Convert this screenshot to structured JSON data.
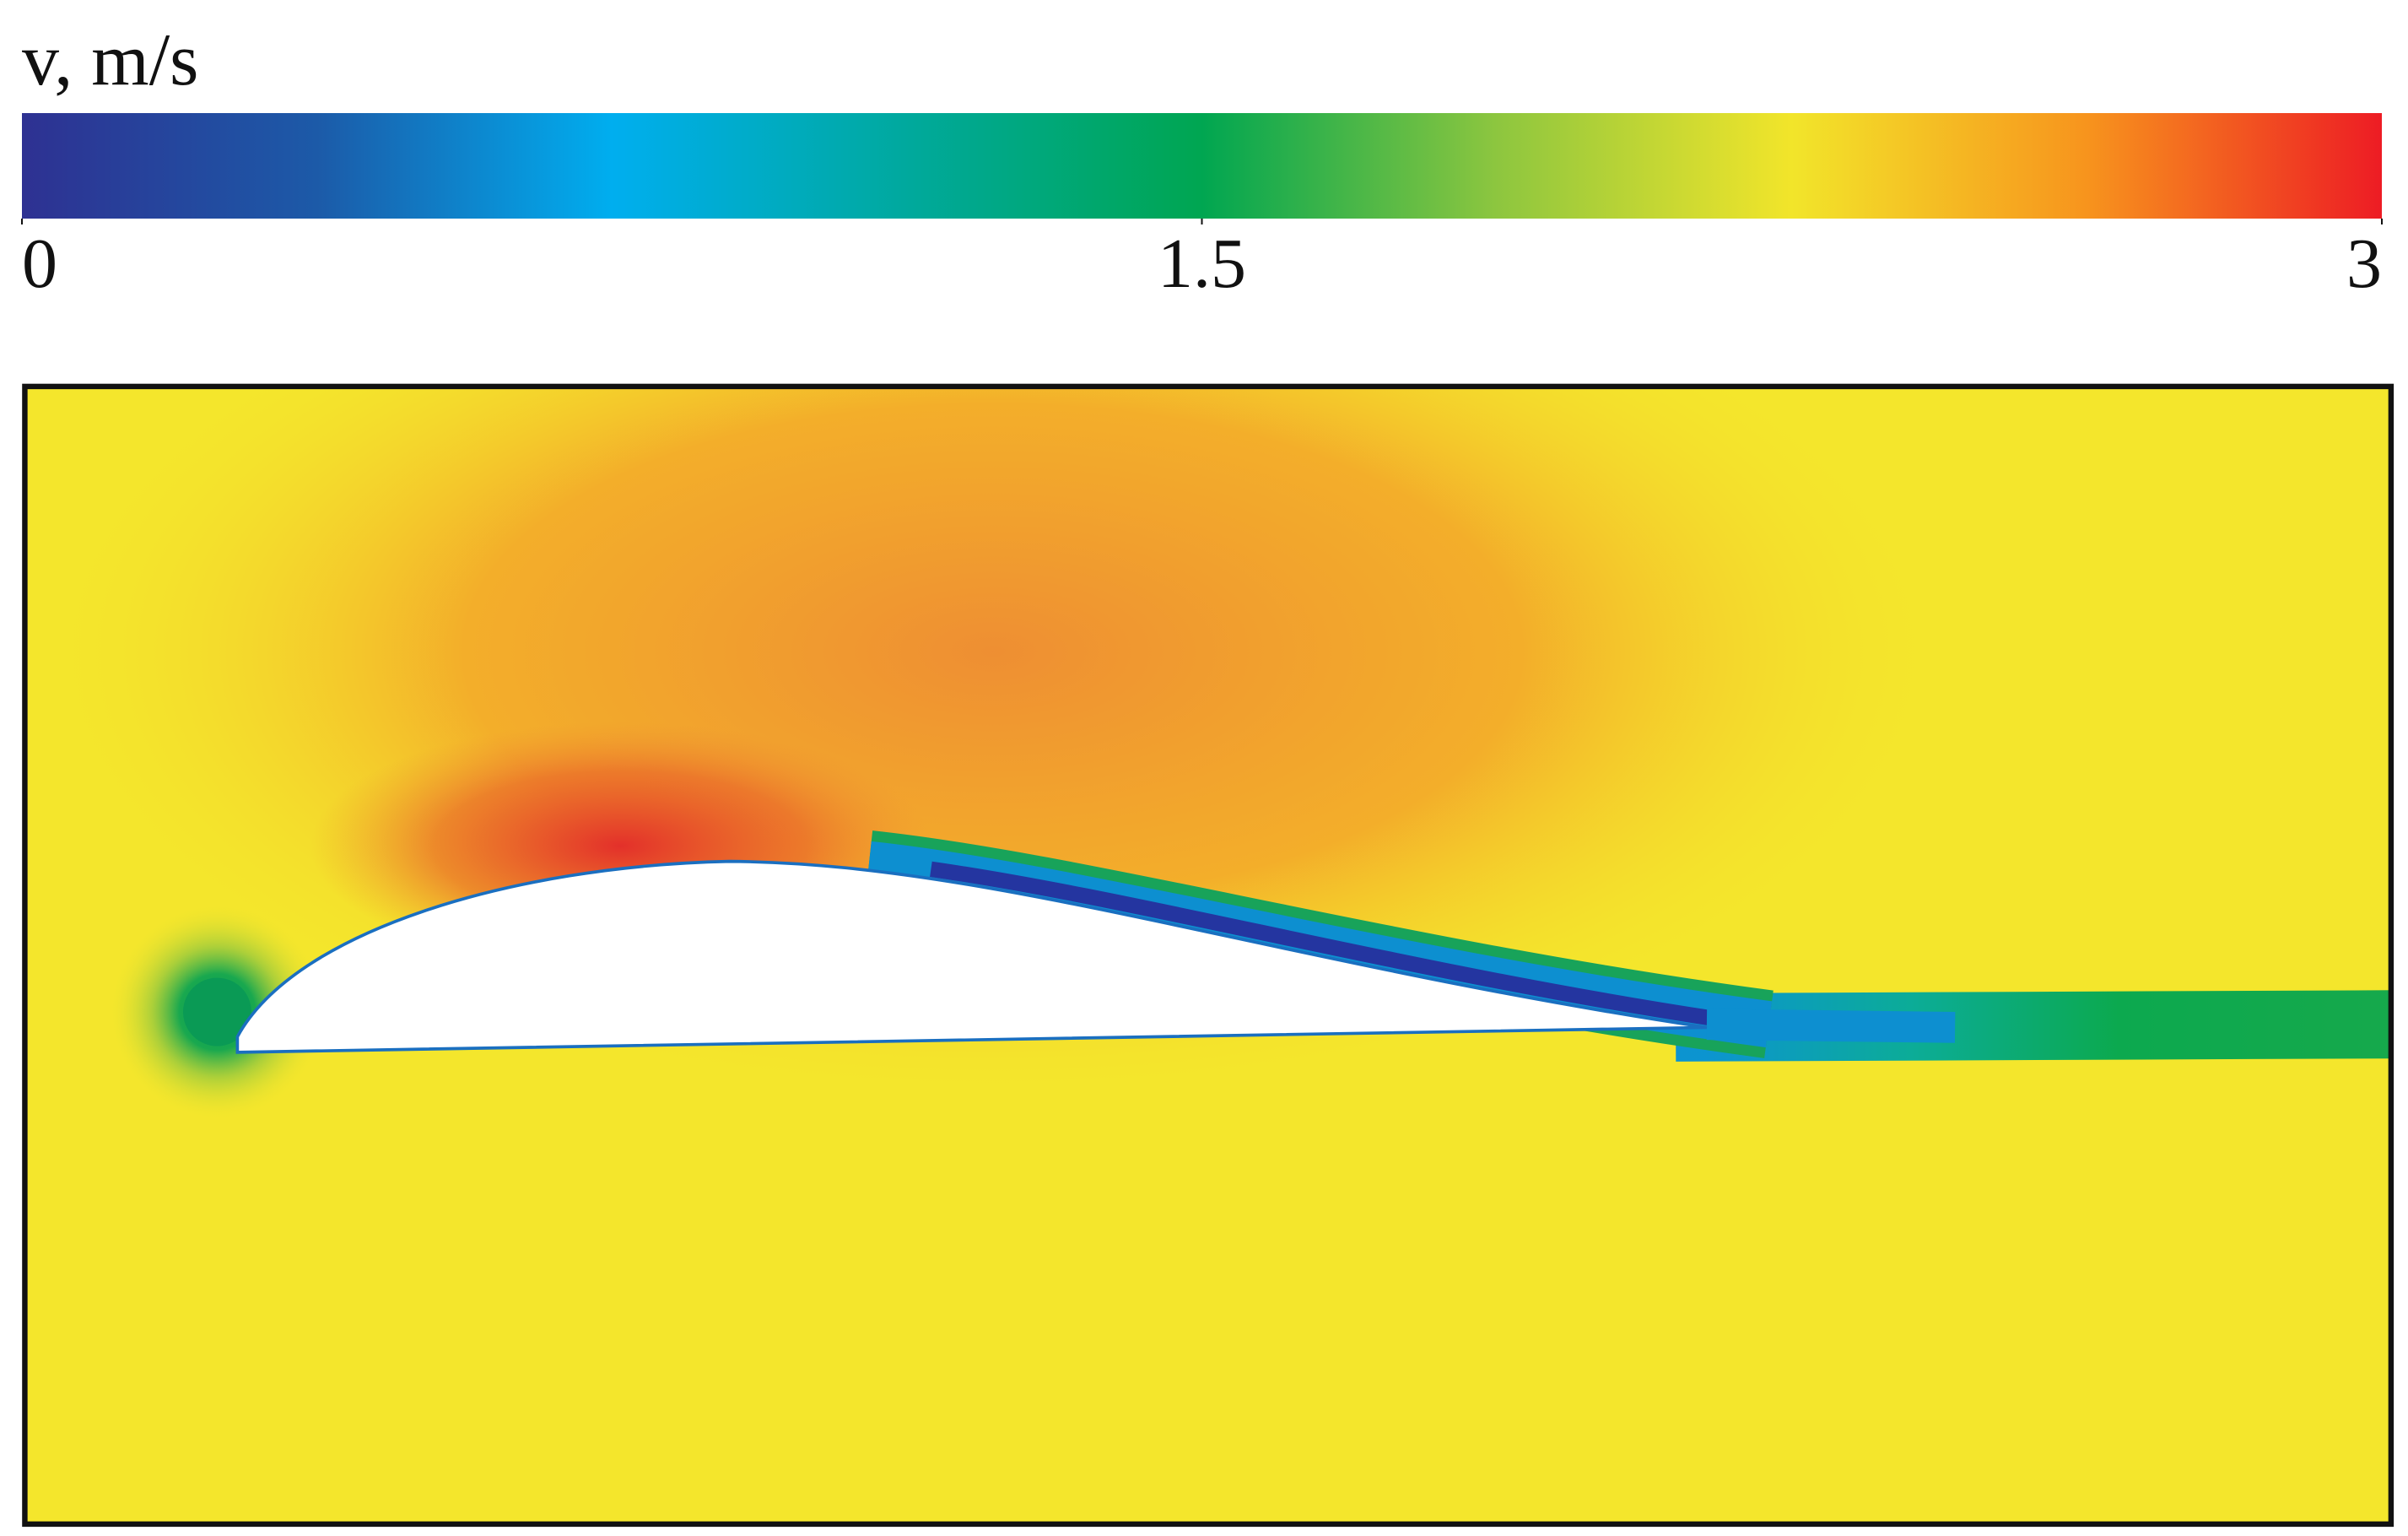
{
  "chart_data": {
    "type": "contour",
    "colorbar": {
      "label": "v, m/s",
      "lim": [
        0,
        3
      ],
      "ticks": [
        0,
        1.5,
        3
      ],
      "colors": [
        "#2e3192",
        "#1c5aa8",
        "#00aeef",
        "#00a99d",
        "#00a651",
        "#8dc63f",
        "#f2e52a",
        "#f7941d",
        "#ed1c24"
      ]
    }
  }
}
